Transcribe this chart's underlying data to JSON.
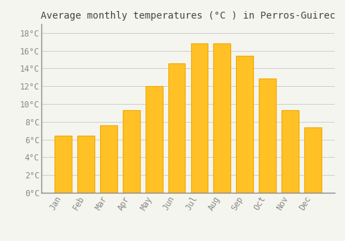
{
  "title": "Average monthly temperatures (°C ) in Perros-Guirec",
  "months": [
    "Jan",
    "Feb",
    "Mar",
    "Apr",
    "May",
    "Jun",
    "Jul",
    "Aug",
    "Sep",
    "Oct",
    "Nov",
    "Dec"
  ],
  "values": [
    6.4,
    6.4,
    7.6,
    9.3,
    12.0,
    14.6,
    16.8,
    16.8,
    15.4,
    12.9,
    9.3,
    7.4
  ],
  "bar_color": "#FFC125",
  "bar_edge_color": "#F0A800",
  "background_color": "#F5F5F0",
  "plot_bg_color": "#F5F5F0",
  "grid_color": "#CCCCCC",
  "tick_label_color": "#888888",
  "title_color": "#444444",
  "ylim": [
    0,
    19
  ],
  "yticks": [
    0,
    2,
    4,
    6,
    8,
    10,
    12,
    14,
    16,
    18
  ],
  "ytick_labels": [
    "0°C",
    "2°C",
    "4°C",
    "6°C",
    "8°C",
    "10°C",
    "12°C",
    "14°C",
    "16°C",
    "18°C"
  ],
  "title_fontsize": 10,
  "tick_fontsize": 8.5
}
